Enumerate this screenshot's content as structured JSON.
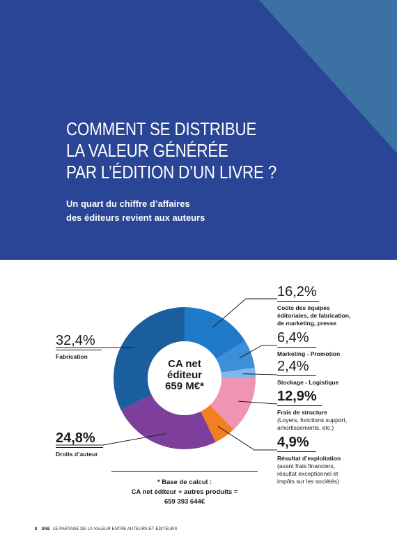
{
  "header": {
    "title_lines": [
      "COMMENT SE DISTRIBUE",
      "LA VALEUR GÉNÉRÉE",
      "PAR L’ÉDITION D’UN LIVRE ?"
    ],
    "subtitle_lines": [
      "Un quart du chiffre d’affaires",
      "des éditeurs revient aux auteurs"
    ]
  },
  "chart_data": {
    "type": "pie",
    "categories": [
      "Coûts des équipes éditoriales, de fabrication, de marketing, presse",
      "Marketing - Promotion",
      "Stockage - Logistique",
      "Frais de structure",
      "Résultat d’exploitation",
      "Droits d’auteur",
      "Fabrication"
    ],
    "values": [
      16.2,
      6.4,
      2.4,
      12.9,
      4.9,
      24.8,
      32.4
    ],
    "colors": [
      "#1f7bc9",
      "#3c8fd8",
      "#7fb8e8",
      "#f094b4",
      "#f27f21",
      "#7e3e9b",
      "#1b5e9e"
    ],
    "center": {
      "lines": [
        "CA net",
        "éditeur",
        "659 M€*"
      ]
    },
    "slices": [
      {
        "pct": "16,2%",
        "desc_lines": [
          "Coûts des équipes",
          "éditoriales, de fabrication,",
          "de marketing, presse"
        ]
      },
      {
        "pct": "6,4%",
        "desc_lines": [
          "Marketing - Promotion"
        ]
      },
      {
        "pct": "2,4%",
        "desc_lines": [
          "Stockage - Logistique"
        ]
      },
      {
        "pct": "12,9%",
        "desc_lines": [
          "Frais de structure",
          "(Loyers, fonctions support,",
          "amortissements, etc.)"
        ]
      },
      {
        "pct": "4,9%",
        "desc_lines": [
          "Résultat d’exploitation",
          "(avant frais financiers,",
          "résultat exceptionnel et",
          "impôts sur les sociétés)"
        ]
      },
      {
        "pct": "24,8%",
        "desc_lines": [
          "Droits d’auteur"
        ]
      },
      {
        "pct": "32,4%",
        "desc_lines": [
          "Fabrication"
        ]
      }
    ]
  },
  "basis": {
    "lines": [
      "* Base de calcul :",
      "CA net éditeur + autres produits =",
      "659 393 644€"
    ]
  },
  "footer": {
    "page": "8",
    "brand": "SNE",
    "text": "LE PARTAGE DE LA VALEUR ENTRE AUTEURS ET ÉDITEURS"
  },
  "colors": {
    "hero_bg": "#2a4595",
    "hero_triangle": "#3b72a3"
  }
}
